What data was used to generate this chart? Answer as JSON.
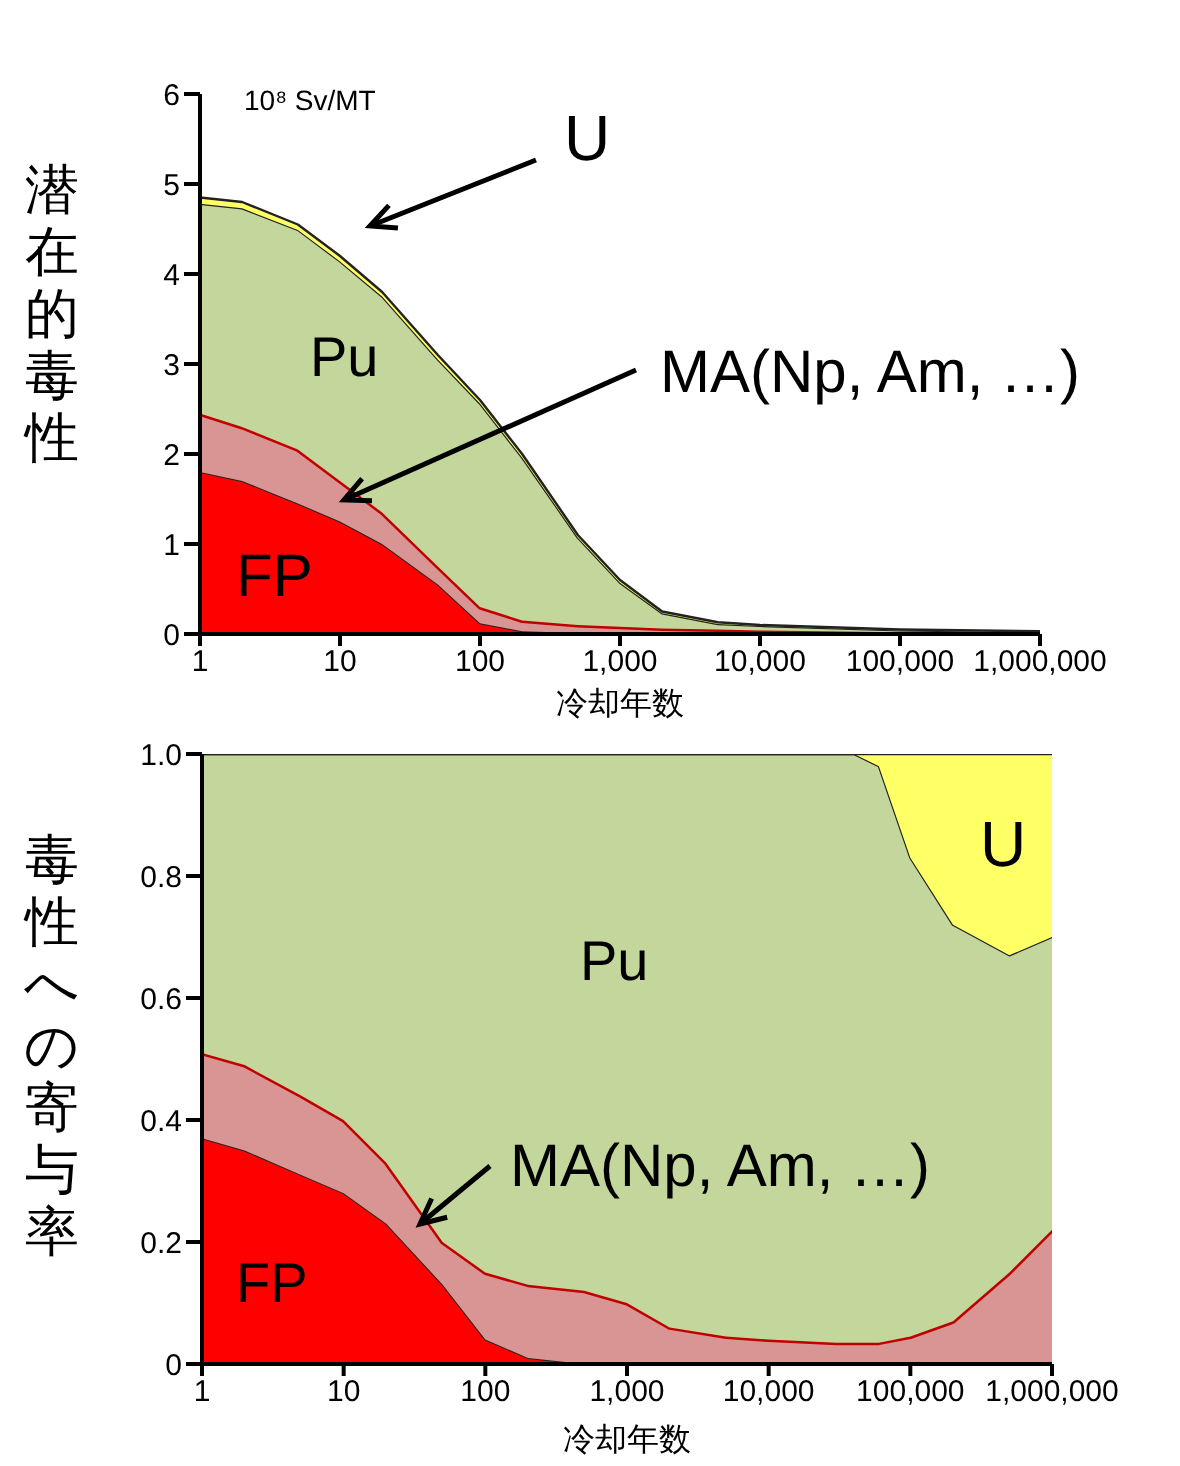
{
  "chart_data": [
    {
      "type": "area",
      "stacked": true,
      "log": "x",
      "ylabel": "潜在的毒性",
      "xlabel": "冷却年数",
      "annotations": [
        "10⁸ Sv/MT"
      ],
      "x": [
        1,
        2,
        5,
        10,
        20,
        50,
        100,
        200,
        500,
        1000,
        2000,
        5000,
        10000,
        100000,
        1000000
      ],
      "xlim": [
        1,
        1000000
      ],
      "xticks": [
        {
          "value": 1,
          "label": "1"
        },
        {
          "value": 10,
          "label": "10"
        },
        {
          "value": 100,
          "label": "100"
        },
        {
          "value": 1000,
          "label": "1,000"
        },
        {
          "value": 10000,
          "label": "10,000"
        },
        {
          "value": 100000,
          "label": "100,000"
        },
        {
          "value": 1000000,
          "label": "1,000,000"
        }
      ],
      "ylim": [
        0,
        6
      ],
      "yticks": [
        0,
        1,
        2,
        3,
        4,
        5,
        6
      ],
      "series": [
        {
          "name": "FP",
          "color": "#ff0000",
          "values": [
            1.8,
            1.7,
            1.45,
            1.25,
            1.0,
            0.55,
            0.12,
            0.03,
            0.01,
            0,
            0,
            0,
            0,
            0,
            0
          ]
        },
        {
          "name": "MA(Np, Am, …)",
          "color": "#d99594",
          "values": [
            0.65,
            0.6,
            0.6,
            0.45,
            0.35,
            0.2,
            0.18,
            0.12,
            0.09,
            0.08,
            0.06,
            0.05,
            0.04,
            0.02,
            0.01
          ]
        },
        {
          "name": "Pu",
          "color": "#c3d69b",
          "values": [
            2.33,
            2.43,
            2.44,
            2.44,
            2.4,
            2.3,
            2.26,
            1.81,
            0.97,
            0.49,
            0.17,
            0.06,
            0.05,
            0.02,
            0.01
          ]
        },
        {
          "name": "U",
          "color": "#ffff66",
          "values": [
            0.07,
            0.07,
            0.06,
            0.06,
            0.05,
            0.05,
            0.04,
            0.04,
            0.03,
            0.03,
            0.02,
            0.02,
            0.01,
            0.01,
            0.01
          ]
        }
      ]
    },
    {
      "type": "area",
      "stacked": true,
      "log": "x",
      "ylabel": "毒性への寄与率",
      "xlabel": "冷却年数",
      "x": [
        1,
        2,
        5,
        10,
        20,
        50,
        100,
        200,
        500,
        1000,
        2000,
        5000,
        10000,
        30000,
        40000,
        60000,
        100000,
        200000,
        500000,
        1000000
      ],
      "xlim": [
        1,
        1000000
      ],
      "xticks": [
        {
          "value": 1,
          "label": "1"
        },
        {
          "value": 10,
          "label": "10"
        },
        {
          "value": 100,
          "label": "100"
        },
        {
          "value": 1000,
          "label": "1,000"
        },
        {
          "value": 10000,
          "label": "10,000"
        },
        {
          "value": 100000,
          "label": "100,000"
        },
        {
          "value": 1000000,
          "label": "1,000,000"
        }
      ],
      "ylim": [
        0,
        1
      ],
      "yticks": [
        0,
        {
          "value": 0.2,
          "label": "0.2"
        },
        {
          "value": 0.4,
          "label": "0.4"
        },
        {
          "value": 0.6,
          "label": "0.6"
        },
        {
          "value": 0.8,
          "label": "0.8"
        },
        {
          "value": 1,
          "label": "1.0"
        }
      ],
      "series": [
        {
          "name": "FP",
          "color": "#ff0000",
          "values": [
            0.37,
            0.35,
            0.31,
            0.28,
            0.23,
            0.13,
            0.04,
            0.01,
            0,
            0,
            0,
            0,
            0,
            0,
            0,
            0,
            0,
            0,
            0,
            0
          ]
        },
        {
          "name": "MA(Np, Am, …)",
          "color": "#d99594",
          "values": [
            0.14,
            0.14,
            0.13,
            0.12,
            0.1,
            0.07,
            0.11,
            0.12,
            0.12,
            0.1,
            0.06,
            0.045,
            0.04,
            0.035,
            0.035,
            0.035,
            0.045,
            0.07,
            0.15,
            0.22
          ]
        },
        {
          "name": "Pu",
          "color": "#c3d69b",
          "values": [
            0.49,
            0.51,
            0.56,
            0.6,
            0.67,
            0.8,
            0.85,
            0.87,
            0.88,
            0.9,
            0.94,
            0.955,
            0.96,
            0.965,
            0.965,
            0.945,
            0.785,
            0.65,
            0.52,
            0.48
          ]
        },
        {
          "name": "U",
          "color": "#ffff66",
          "values": [
            0,
            0,
            0,
            0,
            0,
            0,
            0,
            0,
            0,
            0,
            0,
            0,
            0,
            0,
            0,
            0.02,
            0.17,
            0.28,
            0.33,
            0.3
          ]
        }
      ]
    }
  ]
}
